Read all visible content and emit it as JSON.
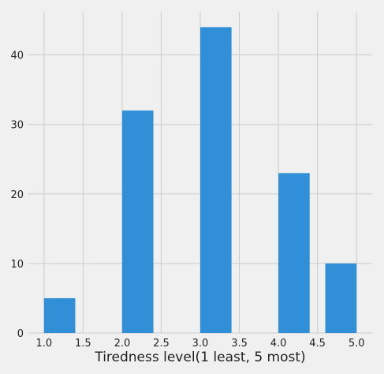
{
  "chart_data": {
    "type": "bar",
    "title": "",
    "xlabel": "Tiredness level(1 least, 5 most)",
    "ylabel": "",
    "xlim": [
      0.8,
      5.2
    ],
    "ylim": [
      0,
      46.2
    ],
    "bars": [
      {
        "x0": 1.0,
        "x1": 1.4,
        "value": 5
      },
      {
        "x0": 2.0,
        "x1": 2.4,
        "value": 32
      },
      {
        "x0": 3.0,
        "x1": 3.4,
        "value": 44
      },
      {
        "x0": 4.0,
        "x1": 4.4,
        "value": 23
      },
      {
        "x0": 4.6,
        "x1": 5.0,
        "value": 10
      }
    ],
    "xticks": [
      1.0,
      1.5,
      2.0,
      2.5,
      3.0,
      3.5,
      4.0,
      4.5,
      5.0
    ],
    "xtick_labels": [
      "1.0",
      "1.5",
      "2.0",
      "2.5",
      "3.0",
      "3.5",
      "4.0",
      "4.5",
      "5.0"
    ],
    "yticks": [
      0,
      10,
      20,
      30,
      40
    ],
    "ytick_labels": [
      "0",
      "10",
      "20",
      "30",
      "40"
    ],
    "grid": true,
    "colors": {
      "bar": "#308fd6",
      "grid": "#cbcbcb",
      "background": "#f0f0f0",
      "text": "#222222"
    }
  }
}
